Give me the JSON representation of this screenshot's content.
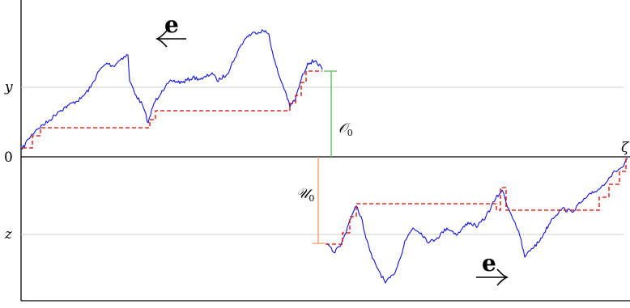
{
  "labels": {
    "y": "y",
    "zero": "0",
    "z": "z",
    "zeta": "ζ",
    "e_top": "e",
    "e_bottom": "e",
    "over_main": "𝒪",
    "over_sub": "0",
    "under_main": "𝒰",
    "under_sub": "0"
  },
  "colors": {
    "path": "#1010e0",
    "running_max": "#e00000",
    "over_bar": "#66bb66",
    "under_bar": "#f0a070",
    "guides": "#cccccc",
    "axis": "#000000"
  }
}
